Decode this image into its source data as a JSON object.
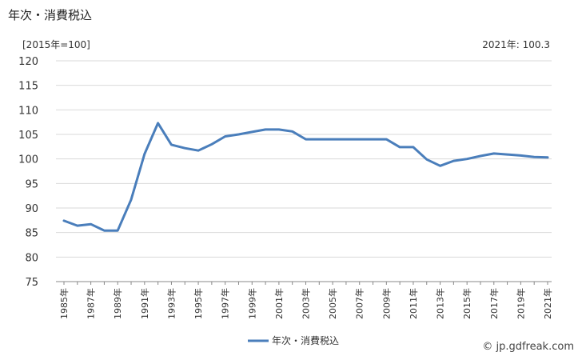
{
  "header": {
    "title": "年次・消費税込",
    "unit": "[2015年=100]",
    "latest": "2021年: 100.3"
  },
  "credit": "© jp.gdfreak.com",
  "chart_data": {
    "type": "line",
    "title": "年次・消費税込",
    "xlabel": "",
    "ylabel": "",
    "ylim": [
      75,
      120
    ],
    "yticks": [
      75,
      80,
      85,
      90,
      95,
      100,
      105,
      110,
      115,
      120
    ],
    "x": [
      1985,
      1986,
      1987,
      1988,
      1989,
      1990,
      1991,
      1992,
      1993,
      1994,
      1995,
      1996,
      1997,
      1998,
      1999,
      2000,
      2001,
      2002,
      2003,
      2004,
      2005,
      2006,
      2007,
      2008,
      2009,
      2010,
      2011,
      2012,
      2013,
      2014,
      2015,
      2016,
      2017,
      2018,
      2019,
      2020,
      2021
    ],
    "xtick_labels": [
      "1985年",
      "1987年",
      "1989年",
      "1991年",
      "1993年",
      "1995年",
      "1997年",
      "1999年",
      "2001年",
      "2003年",
      "2005年",
      "2007年",
      "2009年",
      "2011年",
      "2013年",
      "2015年",
      "2017年",
      "2019年",
      "2021年"
    ],
    "series": [
      {
        "name": "年次・消費税込",
        "color": "#4a7ebb",
        "values": [
          87.4,
          86.4,
          86.7,
          85.4,
          85.4,
          91.7,
          101.0,
          107.3,
          102.9,
          102.2,
          101.7,
          103.0,
          104.6,
          105.0,
          105.5,
          106.0,
          106.0,
          105.6,
          104.0,
          104.0,
          104.0,
          104.0,
          104.0,
          104.0,
          104.0,
          102.4,
          102.4,
          99.9,
          98.6,
          99.6,
          100.0,
          100.6,
          101.1,
          100.9,
          100.7,
          100.4,
          100.3
        ]
      }
    ],
    "grid": true,
    "legend": "bottom"
  }
}
